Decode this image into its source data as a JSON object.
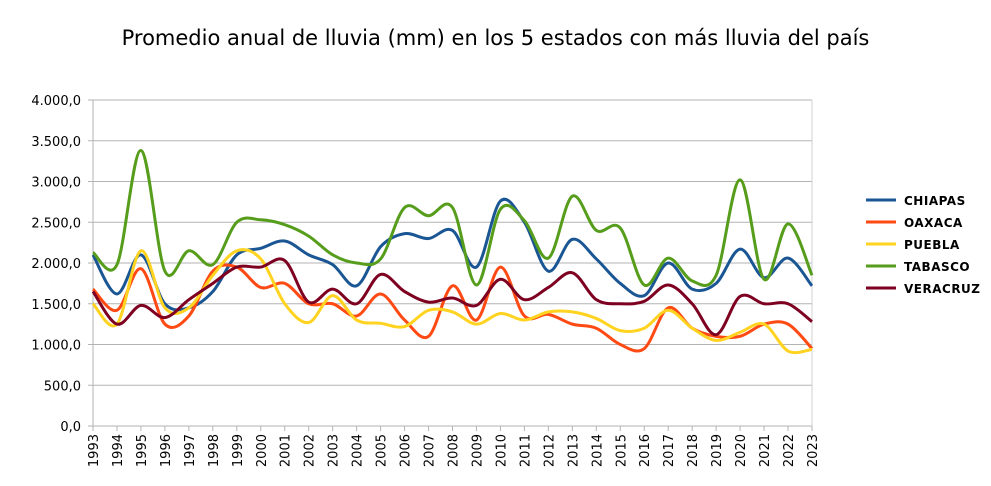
{
  "chart_data": {
    "type": "line",
    "title": "Promedio anual de lluvia (mm) en los 5 estados con más lluvia del país",
    "xlabel": "",
    "ylabel": "",
    "ylim": [
      0,
      4000
    ],
    "yticks": [
      "0,0",
      "500,0",
      "1.000,0",
      "1.500,0",
      "2.000,0",
      "2.500,0",
      "3.000,0",
      "3.500,0",
      "4.000,0"
    ],
    "grid": true,
    "legend": "right",
    "x": [
      1993,
      1994,
      1995,
      1996,
      1997,
      1998,
      1999,
      2000,
      2001,
      2002,
      2003,
      2004,
      2005,
      2006,
      2007,
      2008,
      2009,
      2010,
      2011,
      2012,
      2013,
      2014,
      2015,
      2016,
      2017,
      2018,
      2019,
      2020,
      2021,
      2022,
      2023
    ],
    "series": [
      {
        "name": "CHIAPAS",
        "color": "#1a5694",
        "values": [
          2100,
          1620,
          2100,
          1500,
          1450,
          1650,
          2100,
          2180,
          2270,
          2100,
          1980,
          1720,
          2200,
          2360,
          2300,
          2400,
          1950,
          2760,
          2500,
          1900,
          2290,
          2050,
          1750,
          1600,
          2000,
          1680,
          1750,
          2170,
          1820,
          2060,
          1720
        ]
      },
      {
        "name": "OAXACA",
        "color": "#ff4a14",
        "values": [
          1680,
          1420,
          1930,
          1250,
          1350,
          1900,
          1950,
          1700,
          1750,
          1500,
          1500,
          1350,
          1620,
          1300,
          1100,
          1720,
          1300,
          1950,
          1350,
          1370,
          1250,
          1200,
          1000,
          950,
          1450,
          1200,
          1100,
          1100,
          1250,
          1250,
          950
        ]
      },
      {
        "name": "PUEBLA",
        "color": "#ffd320",
        "values": [
          1500,
          1250,
          2150,
          1450,
          1450,
          1850,
          2150,
          2050,
          1500,
          1270,
          1600,
          1300,
          1260,
          1220,
          1420,
          1400,
          1250,
          1380,
          1300,
          1400,
          1400,
          1320,
          1170,
          1200,
          1420,
          1200,
          1050,
          1150,
          1250,
          920,
          940
        ]
      },
      {
        "name": "TABASCO",
        "color": "#579d1c",
        "values": [
          2130,
          1980,
          3380,
          1900,
          2150,
          1980,
          2500,
          2530,
          2470,
          2330,
          2100,
          2000,
          2050,
          2680,
          2580,
          2680,
          1730,
          2660,
          2520,
          2060,
          2820,
          2400,
          2430,
          1730,
          2060,
          1780,
          1850,
          3020,
          1800,
          2480,
          1850
        ]
      },
      {
        "name": "VERACRUZ",
        "color": "#7e0021",
        "values": [
          1650,
          1250,
          1480,
          1330,
          1550,
          1750,
          1950,
          1950,
          2030,
          1520,
          1680,
          1500,
          1860,
          1650,
          1520,
          1570,
          1480,
          1800,
          1550,
          1700,
          1880,
          1550,
          1500,
          1530,
          1730,
          1500,
          1120,
          1590,
          1500,
          1500,
          1280
        ]
      }
    ]
  }
}
